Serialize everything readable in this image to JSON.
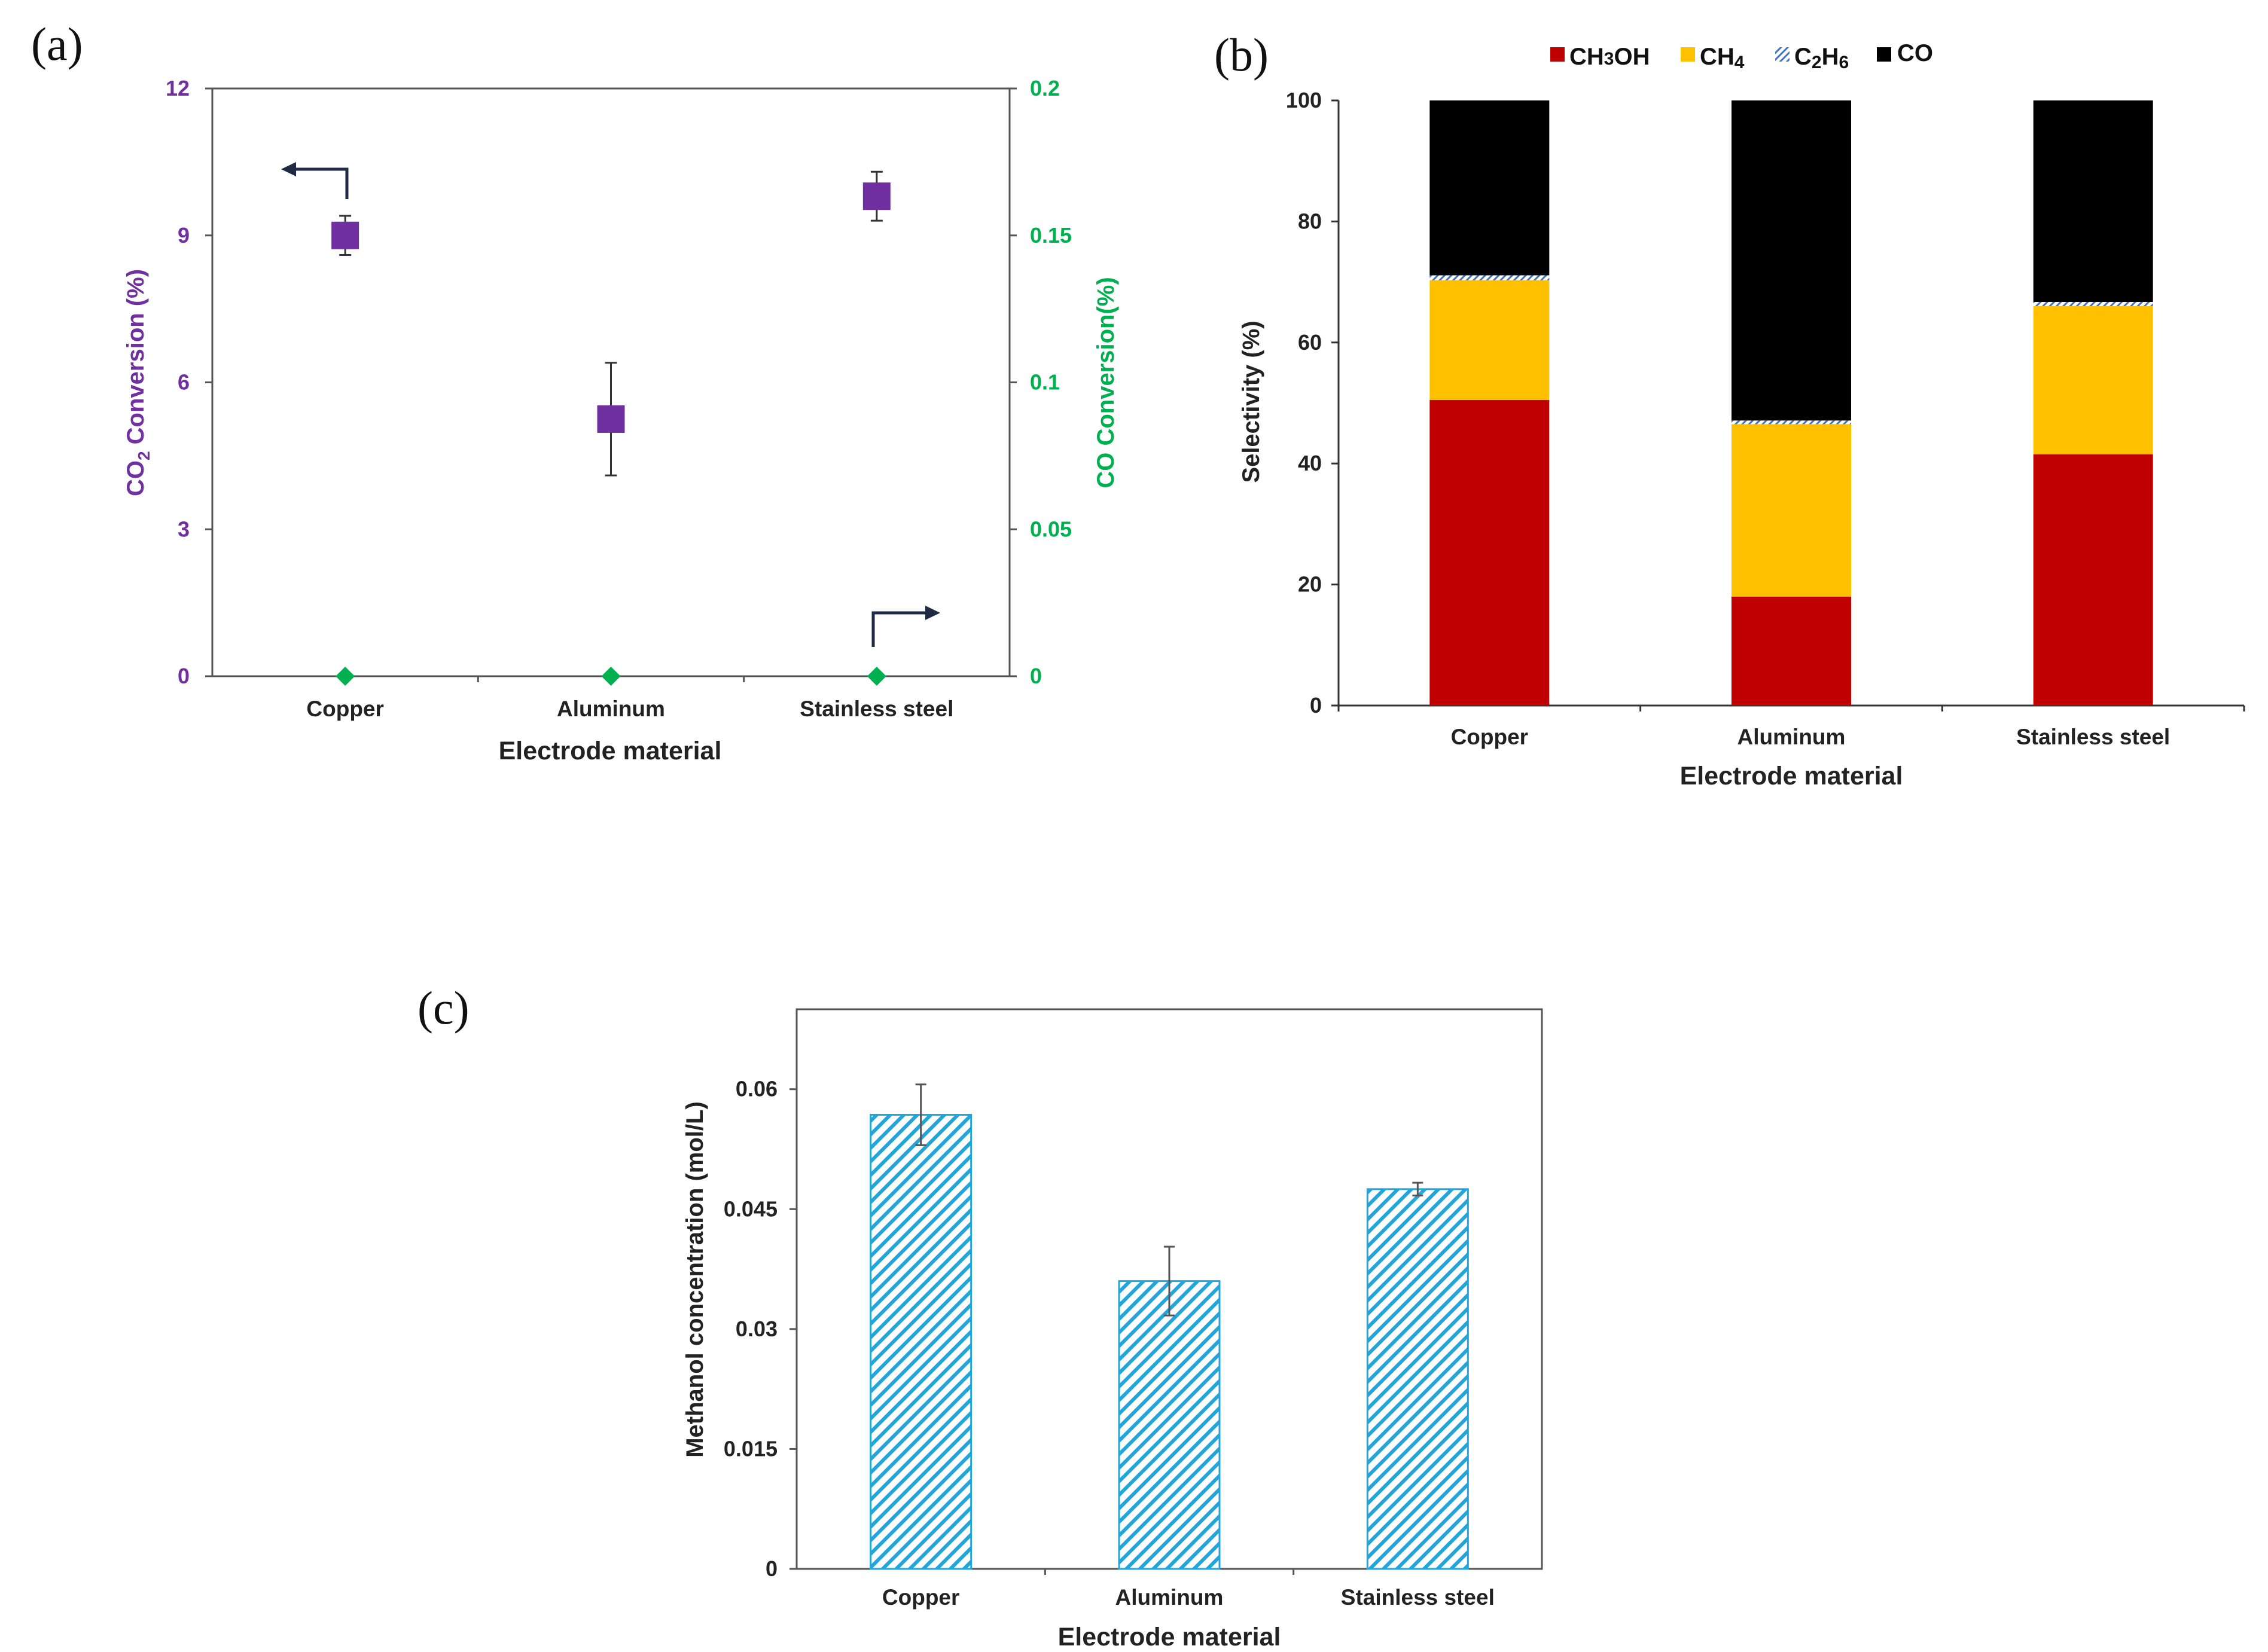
{
  "colors": {
    "purple": "#7030A0",
    "green": "#00B050",
    "methanol": "#C00000",
    "methane": "#FFC000",
    "ethane": "#4472C4",
    "co": "#000000",
    "hatch_blue": "#22A5DA",
    "arrow": "#1F2A44"
  },
  "chart_data": [
    {
      "panel": "(a)",
      "type": "scatter",
      "categories": [
        "Copper",
        "Aluminum",
        "Stainless steel"
      ],
      "xlabel": "Electrode material",
      "ylabel_left_parts": [
        "CO",
        "2",
        " Conversion (%)"
      ],
      "ylabel_right": "CO Conversion(%)",
      "ylim_left": [
        0,
        12
      ],
      "yticks_left": [
        "0",
        "3",
        "6",
        "9",
        "12"
      ],
      "ylim_right": [
        0,
        0.2
      ],
      "yticks_right": [
        "0",
        "0.05",
        "0.1",
        "0.15",
        "0.2"
      ],
      "series": [
        {
          "name": "CO2 Conversion",
          "axis": "left",
          "marker": "square",
          "values": [
            9.0,
            5.25,
            9.8
          ],
          "error": [
            0.4,
            1.15,
            0.5
          ]
        },
        {
          "name": "CO Conversion",
          "axis": "right",
          "marker": "diamond",
          "values": [
            0,
            0,
            0
          ]
        }
      ]
    },
    {
      "panel": "(b)",
      "type": "bar",
      "stacked": true,
      "categories": [
        "Copper",
        "Aluminum",
        "Stainless steel"
      ],
      "xlabel": "Electrode material",
      "ylabel": "Selectivity (%)",
      "ylim": [
        0,
        100
      ],
      "yticks": [
        "0",
        "20",
        "40",
        "60",
        "80",
        "100"
      ],
      "legend": [
        {
          "label": "CH",
          "sub1": "3",
          "mid": "OH"
        },
        {
          "label": "CH",
          "sub1": "4",
          "mid": ""
        },
        {
          "label": "C",
          "sub1": "2",
          "mid": "H",
          "sub2": "6"
        },
        {
          "label": "CO",
          "sub1": "",
          "mid": ""
        }
      ],
      "series": [
        {
          "name": "CH3OH",
          "values": [
            50.5,
            18.0,
            41.5
          ]
        },
        {
          "name": "CH4",
          "values": [
            19.8,
            28.5,
            24.5
          ]
        },
        {
          "name": "C2H6",
          "values": [
            0.8,
            0.6,
            0.7
          ]
        },
        {
          "name": "CO",
          "values": [
            28.9,
            52.9,
            33.3
          ]
        }
      ]
    },
    {
      "panel": "(c)",
      "type": "bar",
      "categories": [
        "Copper",
        "Aluminum",
        "Stainless steel"
      ],
      "xlabel": "Electrode material",
      "ylabel": "Methanol concentration (mol/L)",
      "ylim": [
        0,
        0.07
      ],
      "yticks": [
        "0",
        "0.015",
        "0.03",
        "0.045",
        "0.06"
      ],
      "values": [
        0.0568,
        0.036,
        0.0475
      ],
      "error": [
        0.0038,
        0.0043,
        0.0008
      ]
    }
  ]
}
